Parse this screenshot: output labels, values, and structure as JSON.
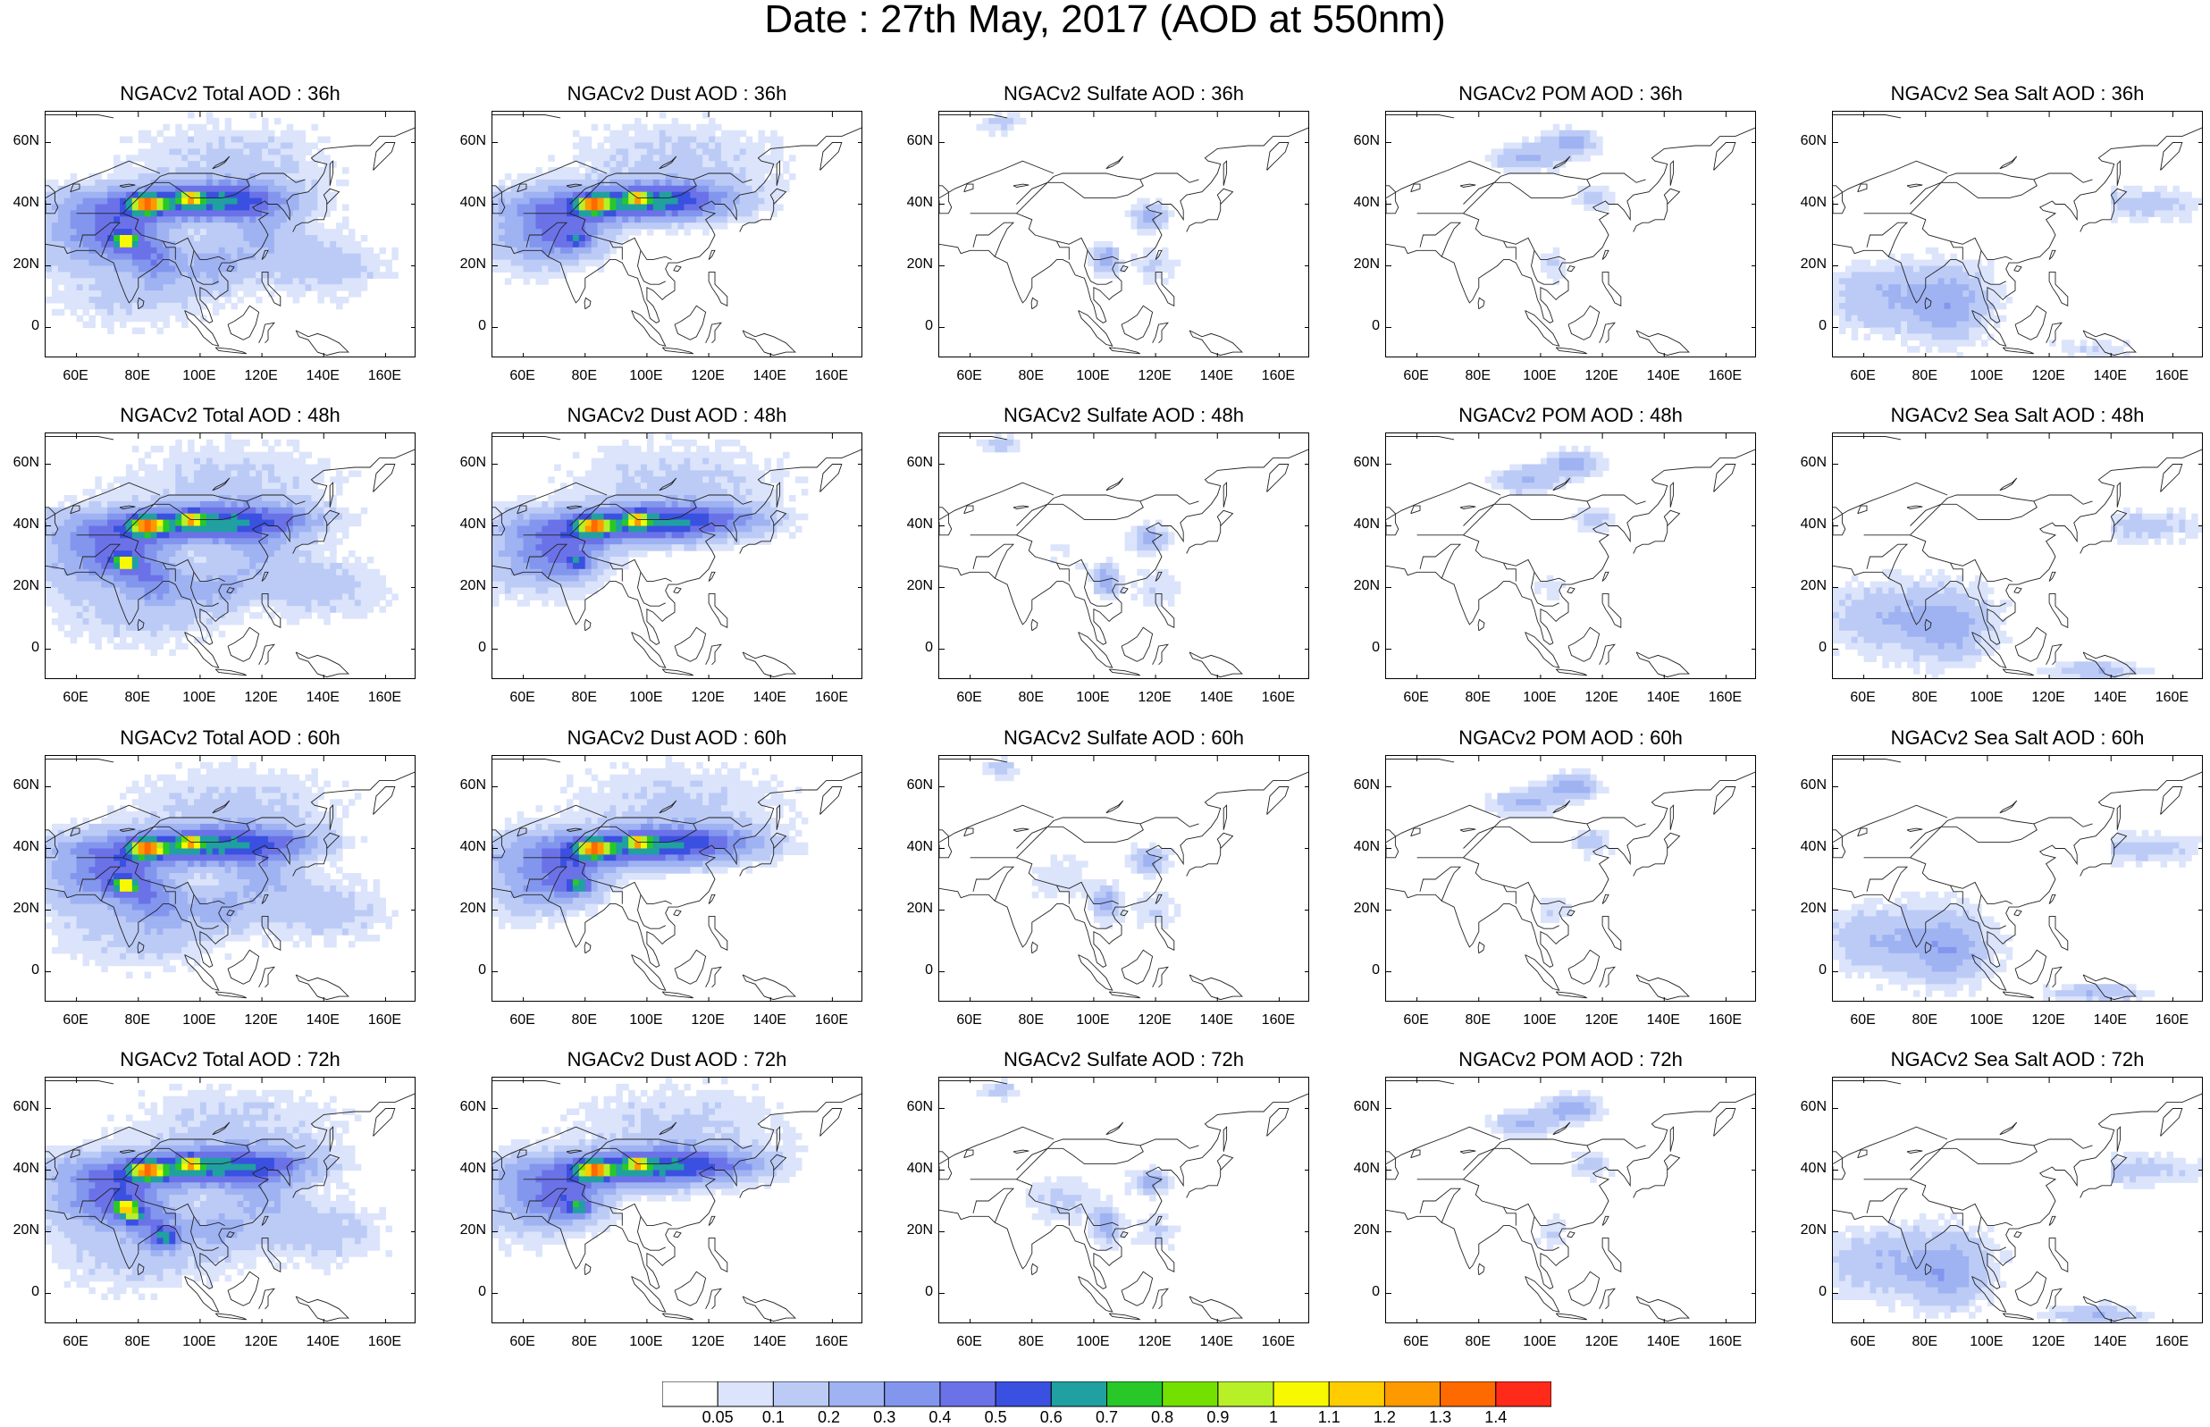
{
  "title": "Date : 27th May, 2017 (AOD at 550nm)",
  "panels": [
    {
      "title": "NGACv2 Total AOD : 36h",
      "species": "total",
      "lead": "36h"
    },
    {
      "title": "NGACv2 Dust AOD : 36h",
      "species": "dust",
      "lead": "36h"
    },
    {
      "title": "NGACv2 Sulfate AOD : 36h",
      "species": "sulfate",
      "lead": "36h"
    },
    {
      "title": "NGACv2 POM AOD : 36h",
      "species": "pom",
      "lead": "36h"
    },
    {
      "title": "NGACv2 Sea Salt AOD : 36h",
      "species": "seasalt",
      "lead": "36h"
    },
    {
      "title": "NGACv2 Total AOD : 48h",
      "species": "total",
      "lead": "48h"
    },
    {
      "title": "NGACv2 Dust AOD : 48h",
      "species": "dust",
      "lead": "48h"
    },
    {
      "title": "NGACv2 Sulfate AOD : 48h",
      "species": "sulfate",
      "lead": "48h"
    },
    {
      "title": "NGACv2 POM AOD : 48h",
      "species": "pom",
      "lead": "48h"
    },
    {
      "title": "NGACv2 Sea Salt AOD : 48h",
      "species": "seasalt",
      "lead": "48h"
    },
    {
      "title": "NGACv2 Total AOD : 60h",
      "species": "total",
      "lead": "60h"
    },
    {
      "title": "NGACv2 Dust AOD : 60h",
      "species": "dust",
      "lead": "60h"
    },
    {
      "title": "NGACv2 Sulfate AOD : 60h",
      "species": "sulfate",
      "lead": "60h"
    },
    {
      "title": "NGACv2 POM AOD : 60h",
      "species": "pom",
      "lead": "60h"
    },
    {
      "title": "NGACv2 Sea Salt AOD : 60h",
      "species": "seasalt",
      "lead": "60h"
    },
    {
      "title": "NGACv2 Total AOD : 72h",
      "species": "total",
      "lead": "72h"
    },
    {
      "title": "NGACv2 Dust AOD : 72h",
      "species": "dust",
      "lead": "72h"
    },
    {
      "title": "NGACv2 Sulfate AOD : 72h",
      "species": "sulfate",
      "lead": "72h"
    },
    {
      "title": "NGACv2 POM AOD : 72h",
      "species": "pom",
      "lead": "72h"
    },
    {
      "title": "NGACv2 Sea Salt  AOD : 72h",
      "species": "seasalt",
      "lead": "72h"
    }
  ],
  "lat_ticks": [
    "60N",
    "40N",
    "20N",
    "0"
  ],
  "lon_ticks": [
    "60E",
    "80E",
    "100E",
    "120E",
    "140E",
    "160E"
  ],
  "colorbar": {
    "levels": [
      "0.05",
      "0.1",
      "0.2",
      "0.3",
      "0.4",
      "0.5",
      "0.6",
      "0.7",
      "0.8",
      "0.9",
      "1",
      "1.1",
      "1.2",
      "1.3",
      "1.4"
    ],
    "colors": [
      "#ffffff",
      "#dbe4fb",
      "#bccbf6",
      "#9fb2f2",
      "#8396ee",
      "#6b72e8",
      "#3a50e0",
      "#20a0a0",
      "#28c828",
      "#74e000",
      "#b8f028",
      "#f8f800",
      "#ffcc00",
      "#ff9900",
      "#ff6a00",
      "#ff2a1a"
    ]
  }
}
